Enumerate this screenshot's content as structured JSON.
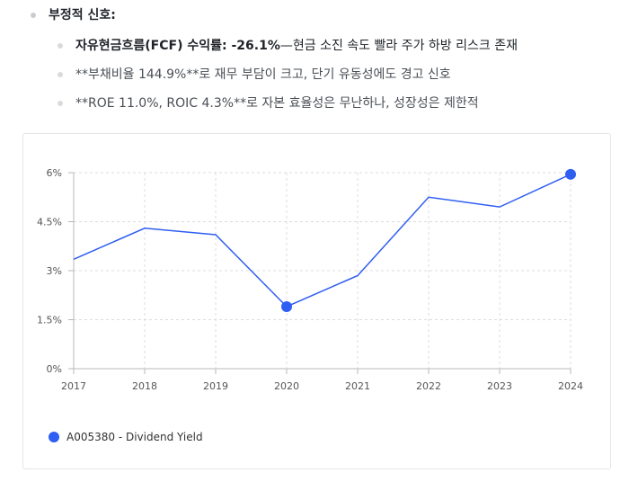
{
  "section": {
    "heading": "부정적 신호:",
    "items": [
      {
        "bold": "자유현금흐름(FCF) 수익률: -26.1%",
        "rest": "—현금 소진 속도 빨라 주가 하방 리스크 존재"
      },
      {
        "bold": "",
        "rest": "**부채비율 144.9%**로 재무 부담이 크고, 단기 유동성에도 경고 신호"
      },
      {
        "bold": "",
        "rest": "**ROE 11.0%, ROIC 4.3%**로 자본 효율성은 무난하나, 성장성은 제한적"
      }
    ]
  },
  "colors": {
    "series": "#2f5ef2",
    "grid": "#dcdcdc",
    "bullet_outer": "#c9ccd1",
    "bullet_inner": "#d8dadd"
  },
  "chart_data": {
    "type": "line",
    "x": [
      "2017",
      "2018",
      "2019",
      "2020",
      "2021",
      "2022",
      "2023",
      "2024"
    ],
    "series": [
      {
        "name": "A005380 - Dividend Yield",
        "values": [
          3.35,
          4.3,
          4.1,
          1.9,
          2.85,
          5.25,
          4.95,
          5.95
        ]
      }
    ],
    "highlighted_points": [
      "2020",
      "2024"
    ],
    "ylim": [
      0,
      6
    ],
    "yticks": [
      "0%",
      "1.5%",
      "3%",
      "4.5%",
      "6%"
    ],
    "ytick_values": [
      0,
      1.5,
      3,
      4.5,
      6
    ],
    "grid": true,
    "legend_position": "bottom-left"
  }
}
